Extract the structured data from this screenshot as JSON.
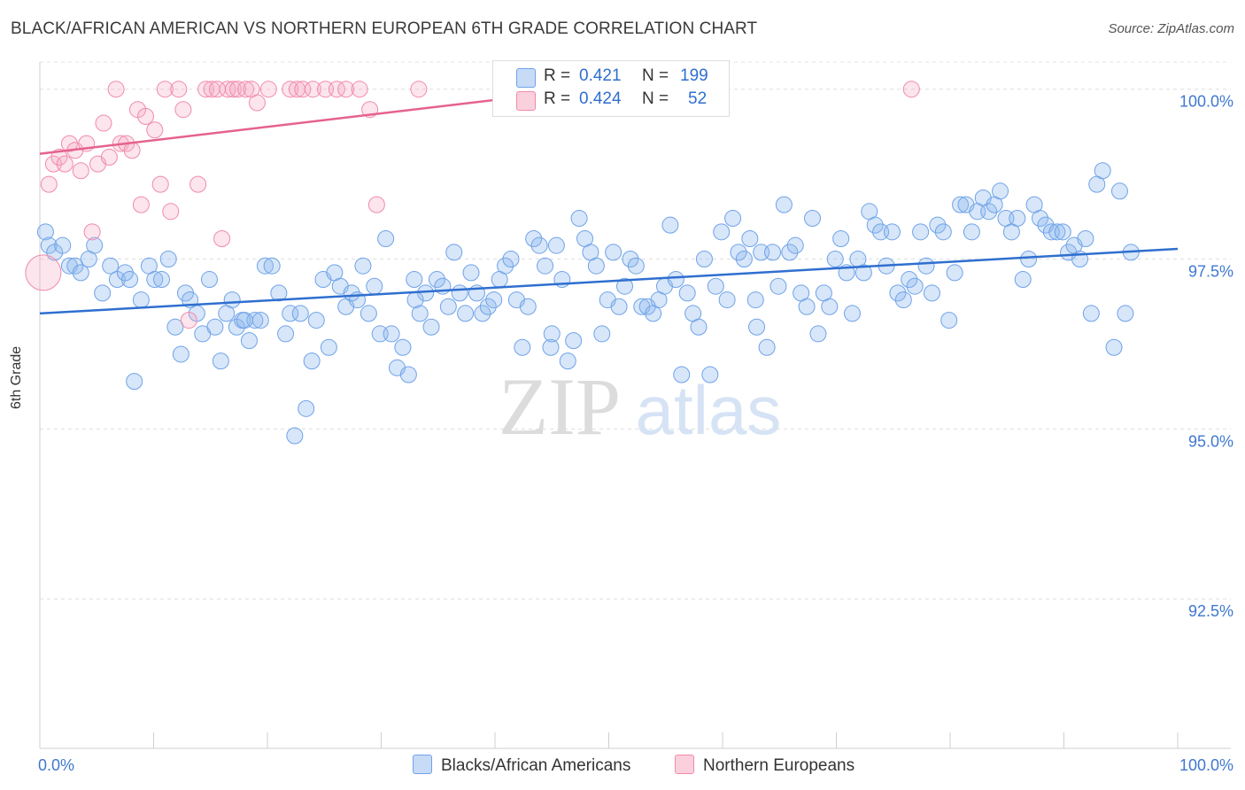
{
  "title": "BLACK/AFRICAN AMERICAN VS NORTHERN EUROPEAN 6TH GRADE CORRELATION CHART",
  "source": "Source: ZipAtlas.com",
  "watermark": {
    "zip": "ZIP",
    "atlas": "atlas"
  },
  "legend": {
    "r_label": "R =",
    "n_label": "N =",
    "rows": [
      {
        "r": "0.421",
        "n": "199",
        "color": "#6fa3e8"
      },
      {
        "r": "0.424",
        "n": "52",
        "color": "#f08aaa"
      }
    ]
  },
  "bottom_legend": [
    "Blacks/African Americans",
    "Northern Europeans"
  ],
  "chart_data": {
    "type": "scatter",
    "title": "BLACK/AFRICAN AMERICAN VS NORTHERN EUROPEAN 6TH GRADE CORRELATION CHART",
    "xlabel": "",
    "ylabel": "6th Grade",
    "xlim": [
      0,
      100
    ],
    "ylim": [
      90.3,
      100.4
    ],
    "x_tick_labels": [
      "0.0%",
      "100.0%"
    ],
    "y_ticks": [
      92.5,
      95.0,
      97.5,
      100.0
    ],
    "y_tick_labels": [
      "92.5%",
      "95.0%",
      "97.5%",
      "100.0%"
    ],
    "grid": true,
    "legend_position": "top-center",
    "series": [
      {
        "name": "Blacks/African Americans",
        "color": "#6fa3e8",
        "r": 0.421,
        "n": 199,
        "trend": {
          "x": [
            0,
            100
          ],
          "y": [
            96.7,
            97.65
          ]
        },
        "points": [
          [
            0.5,
            97.9
          ],
          [
            0.8,
            97.7
          ],
          [
            1.3,
            97.6
          ],
          [
            2.0,
            97.7
          ],
          [
            2.6,
            97.4
          ],
          [
            3.1,
            97.4
          ],
          [
            3.6,
            97.3
          ],
          [
            4.3,
            97.5
          ],
          [
            4.8,
            97.7
          ],
          [
            5.5,
            97.0
          ],
          [
            6.2,
            97.4
          ],
          [
            6.8,
            97.2
          ],
          [
            7.5,
            97.3
          ],
          [
            7.9,
            97.2
          ],
          [
            8.3,
            95.7
          ],
          [
            8.9,
            96.9
          ],
          [
            9.6,
            97.4
          ],
          [
            10.1,
            97.2
          ],
          [
            10.7,
            97.2
          ],
          [
            11.3,
            97.5
          ],
          [
            11.9,
            96.5
          ],
          [
            12.4,
            96.1
          ],
          [
            12.8,
            97.0
          ],
          [
            13.2,
            96.9
          ],
          [
            13.8,
            96.7
          ],
          [
            14.3,
            96.4
          ],
          [
            14.9,
            97.2
          ],
          [
            15.4,
            96.5
          ],
          [
            15.9,
            96.0
          ],
          [
            16.4,
            96.7
          ],
          [
            16.9,
            96.9
          ],
          [
            17.3,
            96.5
          ],
          [
            17.8,
            96.6
          ],
          [
            18.4,
            96.3
          ],
          [
            18.9,
            96.6
          ],
          [
            19.4,
            96.6
          ],
          [
            19.8,
            97.4
          ],
          [
            20.4,
            97.4
          ],
          [
            21.0,
            97.0
          ],
          [
            21.6,
            96.4
          ],
          [
            22.0,
            96.7
          ],
          [
            22.4,
            94.9
          ],
          [
            22.9,
            96.7
          ],
          [
            23.4,
            95.3
          ],
          [
            23.9,
            96.0
          ],
          [
            24.3,
            96.6
          ],
          [
            24.9,
            97.2
          ],
          [
            25.4,
            96.2
          ],
          [
            25.9,
            97.3
          ],
          [
            26.4,
            97.1
          ],
          [
            26.9,
            96.8
          ],
          [
            27.4,
            97.0
          ],
          [
            27.9,
            96.9
          ],
          [
            28.4,
            97.4
          ],
          [
            28.9,
            96.7
          ],
          [
            29.4,
            97.1
          ],
          [
            29.9,
            96.4
          ],
          [
            30.4,
            97.8
          ],
          [
            30.9,
            96.4
          ],
          [
            31.4,
            95.9
          ],
          [
            31.9,
            96.2
          ],
          [
            32.4,
            95.8
          ],
          [
            32.9,
            97.2
          ],
          [
            33.4,
            96.7
          ],
          [
            33.9,
            97.0
          ],
          [
            34.4,
            96.5
          ],
          [
            34.9,
            97.2
          ],
          [
            35.4,
            97.1
          ],
          [
            35.9,
            96.8
          ],
          [
            36.4,
            97.6
          ],
          [
            36.9,
            97.0
          ],
          [
            37.4,
            96.7
          ],
          [
            37.9,
            97.3
          ],
          [
            38.4,
            97.0
          ],
          [
            38.9,
            96.7
          ],
          [
            39.4,
            96.8
          ],
          [
            39.9,
            96.9
          ],
          [
            40.4,
            97.2
          ],
          [
            40.9,
            97.4
          ],
          [
            41.4,
            97.5
          ],
          [
            41.9,
            96.9
          ],
          [
            42.4,
            96.2
          ],
          [
            42.9,
            96.8
          ],
          [
            43.4,
            97.8
          ],
          [
            43.9,
            97.7
          ],
          [
            44.4,
            97.4
          ],
          [
            44.9,
            96.2
          ],
          [
            45.4,
            97.7
          ],
          [
            45.9,
            97.2
          ],
          [
            46.4,
            96.0
          ],
          [
            46.9,
            96.3
          ],
          [
            47.4,
            98.1
          ],
          [
            47.9,
            97.8
          ],
          [
            48.4,
            97.6
          ],
          [
            48.9,
            97.4
          ],
          [
            49.4,
            96.4
          ],
          [
            49.9,
            96.9
          ],
          [
            50.4,
            97.6
          ],
          [
            50.9,
            96.8
          ],
          [
            51.4,
            97.1
          ],
          [
            51.9,
            97.5
          ],
          [
            52.4,
            97.4
          ],
          [
            52.9,
            96.8
          ],
          [
            53.4,
            96.8
          ],
          [
            53.9,
            96.7
          ],
          [
            54.4,
            96.9
          ],
          [
            54.9,
            97.1
          ],
          [
            55.4,
            98.0
          ],
          [
            55.9,
            97.2
          ],
          [
            56.4,
            95.8
          ],
          [
            56.9,
            97.0
          ],
          [
            57.4,
            96.7
          ],
          [
            57.9,
            96.5
          ],
          [
            58.4,
            97.5
          ],
          [
            58.9,
            95.8
          ],
          [
            59.4,
            97.1
          ],
          [
            59.9,
            97.9
          ],
          [
            60.4,
            96.9
          ],
          [
            60.9,
            98.1
          ],
          [
            61.4,
            97.6
          ],
          [
            61.9,
            97.5
          ],
          [
            62.4,
            97.8
          ],
          [
            62.9,
            96.9
          ],
          [
            63.4,
            97.6
          ],
          [
            63.9,
            96.2
          ],
          [
            64.4,
            97.6
          ],
          [
            64.9,
            97.1
          ],
          [
            65.4,
            98.3
          ],
          [
            65.9,
            97.6
          ],
          [
            66.4,
            97.7
          ],
          [
            66.9,
            97.0
          ],
          [
            67.4,
            96.8
          ],
          [
            67.9,
            98.1
          ],
          [
            68.4,
            96.4
          ],
          [
            68.9,
            97.0
          ],
          [
            69.4,
            96.8
          ],
          [
            69.9,
            97.5
          ],
          [
            70.4,
            97.8
          ],
          [
            70.9,
            97.3
          ],
          [
            71.4,
            96.7
          ],
          [
            71.9,
            97.5
          ],
          [
            72.4,
            97.3
          ],
          [
            72.9,
            98.2
          ],
          [
            73.4,
            98.0
          ],
          [
            73.9,
            97.9
          ],
          [
            74.4,
            97.4
          ],
          [
            74.9,
            97.9
          ],
          [
            75.4,
            97.0
          ],
          [
            75.9,
            96.9
          ],
          [
            76.4,
            97.2
          ],
          [
            76.9,
            97.1
          ],
          [
            77.4,
            97.9
          ],
          [
            77.9,
            97.4
          ],
          [
            78.4,
            97.0
          ],
          [
            78.9,
            98.0
          ],
          [
            79.4,
            97.9
          ],
          [
            79.9,
            96.6
          ],
          [
            80.4,
            97.3
          ],
          [
            80.9,
            98.3
          ],
          [
            81.4,
            98.3
          ],
          [
            81.9,
            97.9
          ],
          [
            82.4,
            98.2
          ],
          [
            82.9,
            98.4
          ],
          [
            83.4,
            98.2
          ],
          [
            83.9,
            98.3
          ],
          [
            84.4,
            98.5
          ],
          [
            84.9,
            98.1
          ],
          [
            85.4,
            97.9
          ],
          [
            85.9,
            98.1
          ],
          [
            86.4,
            97.2
          ],
          [
            86.9,
            97.5
          ],
          [
            87.4,
            98.3
          ],
          [
            87.9,
            98.1
          ],
          [
            88.4,
            98.0
          ],
          [
            88.9,
            97.9
          ],
          [
            89.4,
            97.9
          ],
          [
            89.9,
            97.9
          ],
          [
            90.4,
            97.6
          ],
          [
            90.9,
            97.7
          ],
          [
            91.4,
            97.5
          ],
          [
            91.9,
            97.8
          ],
          [
            92.4,
            96.7
          ],
          [
            92.9,
            98.6
          ],
          [
            93.4,
            98.8
          ],
          [
            94.4,
            96.2
          ],
          [
            94.9,
            98.5
          ],
          [
            95.4,
            96.7
          ],
          [
            95.9,
            97.6
          ],
          [
            18.0,
            96.6
          ],
          [
            33.0,
            96.9
          ],
          [
            45.0,
            96.4
          ],
          [
            63.0,
            96.5
          ]
        ]
      },
      {
        "name": "Northern Europeans",
        "color": "#f08aaa",
        "r": 0.424,
        "n": 52,
        "trend": {
          "x": [
            0,
            48
          ],
          "y": [
            99.05,
            100.0
          ]
        },
        "points": [
          [
            0.3,
            97.3
          ],
          [
            0.8,
            98.6
          ],
          [
            1.2,
            98.9
          ],
          [
            1.7,
            99.0
          ],
          [
            2.2,
            98.9
          ],
          [
            2.6,
            99.2
          ],
          [
            3.1,
            99.1
          ],
          [
            3.6,
            98.8
          ],
          [
            4.1,
            99.2
          ],
          [
            4.6,
            97.9
          ],
          [
            5.1,
            98.9
          ],
          [
            5.6,
            99.5
          ],
          [
            6.1,
            99.0
          ],
          [
            6.7,
            100.0
          ],
          [
            7.1,
            99.2
          ],
          [
            7.6,
            99.2
          ],
          [
            8.1,
            99.1
          ],
          [
            8.6,
            99.7
          ],
          [
            8.9,
            98.3
          ],
          [
            9.3,
            99.6
          ],
          [
            10.1,
            99.4
          ],
          [
            10.6,
            98.6
          ],
          [
            11.0,
            100.0
          ],
          [
            11.5,
            98.2
          ],
          [
            12.2,
            100.0
          ],
          [
            12.6,
            99.7
          ],
          [
            13.1,
            96.6
          ],
          [
            13.9,
            98.6
          ],
          [
            14.6,
            100.0
          ],
          [
            15.1,
            100.0
          ],
          [
            15.6,
            100.0
          ],
          [
            16.0,
            97.8
          ],
          [
            16.5,
            100.0
          ],
          [
            17.0,
            100.0
          ],
          [
            17.4,
            100.0
          ],
          [
            18.1,
            100.0
          ],
          [
            18.6,
            100.0
          ],
          [
            19.1,
            99.8
          ],
          [
            20.1,
            100.0
          ],
          [
            22.0,
            100.0
          ],
          [
            22.6,
            100.0
          ],
          [
            23.1,
            100.0
          ],
          [
            24.0,
            100.0
          ],
          [
            25.1,
            100.0
          ],
          [
            26.1,
            100.0
          ],
          [
            26.9,
            100.0
          ],
          [
            28.1,
            100.0
          ],
          [
            29.0,
            99.7
          ],
          [
            29.6,
            98.3
          ],
          [
            33.3,
            100.0
          ],
          [
            46.1,
            100.0
          ],
          [
            76.6,
            100.0
          ]
        ]
      }
    ]
  }
}
